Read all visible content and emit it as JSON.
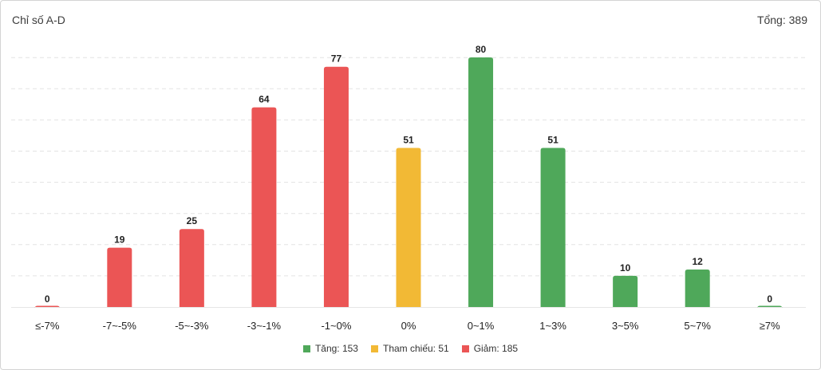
{
  "header": {
    "title": "Chỉ số A-D",
    "total": "Tổng: 389"
  },
  "legend": [
    {
      "label": "Tăng: 153",
      "color": "#4fa85a"
    },
    {
      "label": "Tham chiếu: 51",
      "color": "#f2b935"
    },
    {
      "label": "Giảm: 185",
      "color": "#eb5555"
    }
  ],
  "chart_data": {
    "type": "bar",
    "categories": [
      "≤-7%",
      "-7~-5%",
      "-5~-3%",
      "-3~-1%",
      "-1~0%",
      "0%",
      "0~1%",
      "1~3%",
      "3~5%",
      "5~7%",
      "≥7%"
    ],
    "values": [
      0,
      19,
      25,
      64,
      77,
      51,
      80,
      51,
      10,
      12,
      0
    ],
    "bar_groups": [
      "down",
      "down",
      "down",
      "down",
      "down",
      "ref",
      "up",
      "up",
      "up",
      "up",
      "up"
    ],
    "colors": {
      "down": "#eb5555",
      "ref": "#f2b935",
      "up": "#4fa85a"
    },
    "ylim": [
      0,
      80
    ],
    "grid": true
  }
}
